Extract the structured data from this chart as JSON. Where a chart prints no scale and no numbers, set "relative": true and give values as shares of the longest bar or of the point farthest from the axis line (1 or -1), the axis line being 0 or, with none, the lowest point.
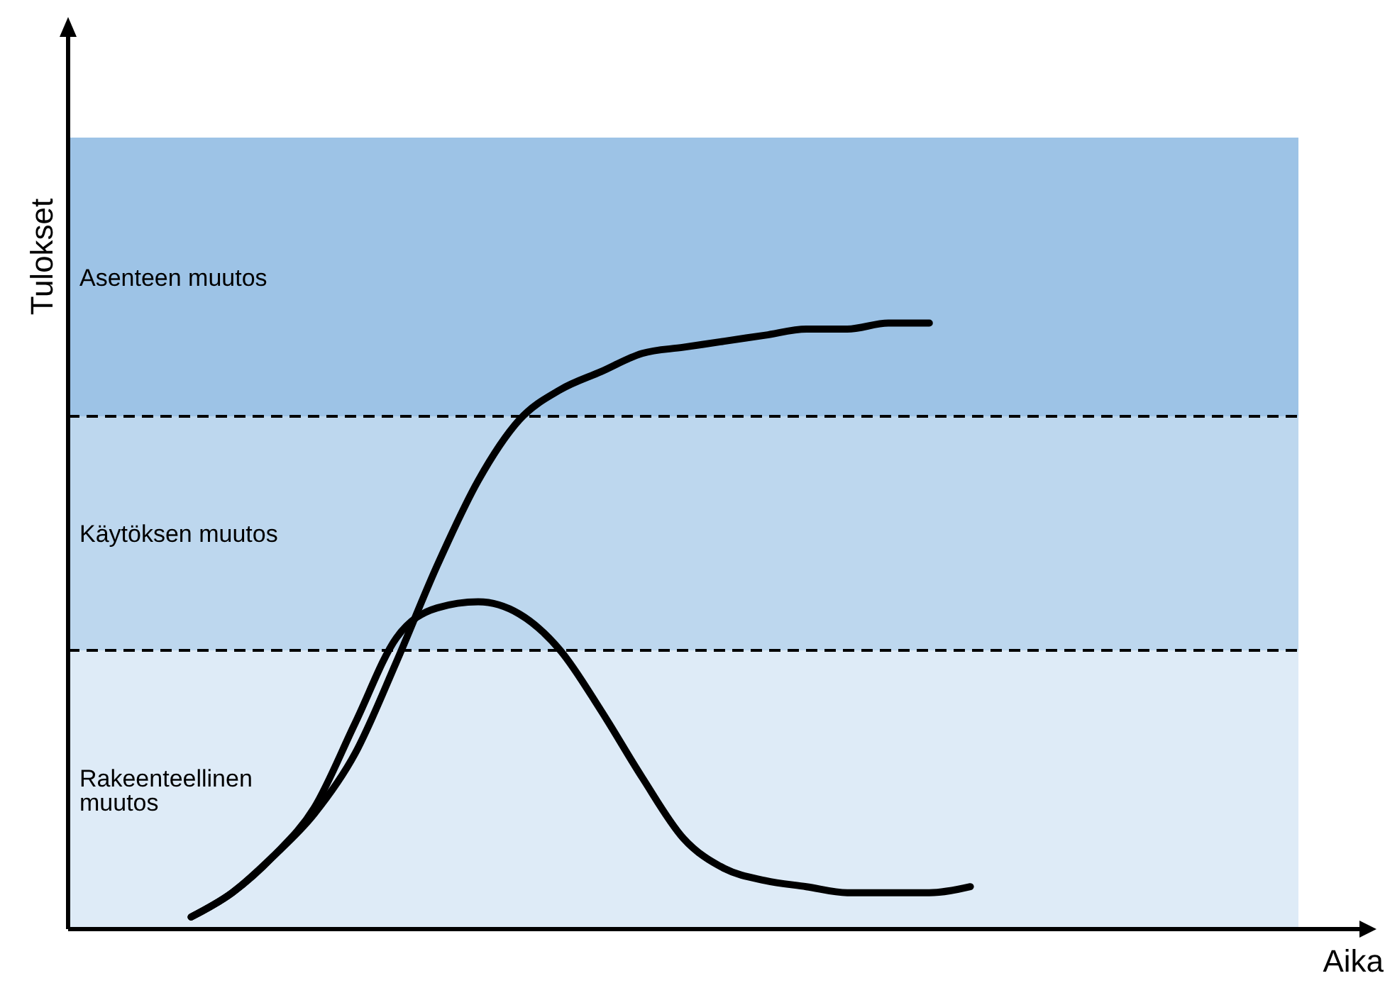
{
  "chart_data": {
    "type": "line",
    "relative": true,
    "xlabel": "Aika",
    "ylabel": "Tulokset",
    "marker": "none",
    "line_style": "solid",
    "categories": [
      null,
      null,
      null,
      null,
      null,
      null,
      null,
      null,
      null,
      null,
      null,
      null,
      null,
      null,
      null,
      null,
      null,
      null,
      null,
      null,
      null,
      null,
      null,
      null,
      null,
      null,
      null,
      null,
      null,
      null,
      null
    ],
    "series": [
      {
        "color": "#000000",
        "values": [
          null,
          null,
          null,
          0.02,
          0.06,
          0.12,
          0.19,
          0.29,
          0.44,
          0.6,
          0.74,
          0.84,
          0.89,
          0.92,
          0.95,
          0.96,
          0.97,
          0.98,
          0.99,
          0.99,
          1.0,
          1.0,
          null,
          null,
          null,
          null,
          null,
          null,
          null,
          null,
          null
        ]
      },
      {
        "color": "#000000",
        "values": [
          null,
          null,
          null,
          0.02,
          0.06,
          0.12,
          0.2,
          0.34,
          0.48,
          0.53,
          0.54,
          0.52,
          0.46,
          0.36,
          0.25,
          0.15,
          0.1,
          0.08,
          0.07,
          0.06,
          0.06,
          0.06,
          0.07,
          null,
          null,
          null,
          null,
          null,
          null,
          null,
          null
        ]
      }
    ],
    "bands": [
      {
        "axis": "y",
        "from": 0,
        "to": 0.46,
        "label": "Rakeenteellinen muutos",
        "color": "#deebf7"
      },
      {
        "axis": "y",
        "from": 0.46,
        "to": 0.846,
        "label": "Käytöksen muutos",
        "color": "#bdd7ee"
      },
      {
        "axis": "y",
        "from": 0.846,
        "to": 1.306,
        "label": "Asenteen muutos",
        "color": "#9dc3e6"
      }
    ],
    "ref_lines": [
      {
        "axis": "y",
        "value": 0.46,
        "color": "#000000",
        "line_style": "dashed"
      },
      {
        "axis": "y",
        "value": 0.846,
        "color": "#000000",
        "line_style": "dashed"
      }
    ]
  }
}
